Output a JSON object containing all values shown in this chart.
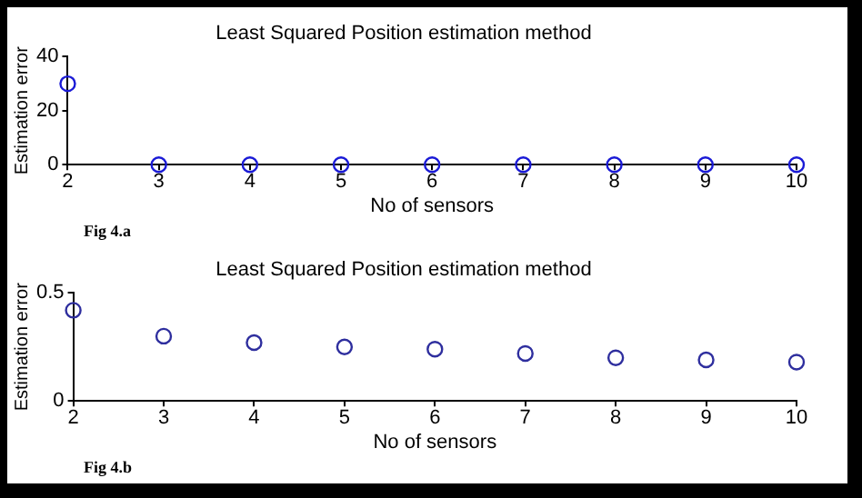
{
  "chart_data": [
    {
      "type": "scatter",
      "title": "Least Squared Position estimation method",
      "xlabel": "No of sensors",
      "ylabel": "Estimation error",
      "annotations": [
        "Fig 4.a"
      ],
      "x": [
        2,
        3,
        4,
        5,
        6,
        7,
        8,
        9,
        10
      ],
      "series": [
        {
          "color": "#1a1ad6",
          "values": [
            30,
            0,
            0,
            0,
            0,
            0,
            0,
            0,
            0
          ]
        }
      ],
      "xlim": [
        2,
        10
      ],
      "xticks": [
        2,
        3,
        4,
        5,
        6,
        7,
        8,
        9,
        10
      ],
      "ylim": [
        0,
        40
      ],
      "yticks": [
        0,
        20,
        40
      ],
      "grid": false,
      "legend": false,
      "marker": "circle"
    },
    {
      "type": "scatter",
      "title": "Least Squared Position estimation method",
      "xlabel": "No of sensors",
      "ylabel": "Estimation error",
      "annotations": [
        "Fig 4.b"
      ],
      "x": [
        2,
        3,
        4,
        5,
        6,
        7,
        8,
        9,
        10
      ],
      "series": [
        {
          "color": "#2e2e9e",
          "values": [
            0.42,
            0.3,
            0.27,
            0.25,
            0.24,
            0.22,
            0.2,
            0.19,
            0.18
          ]
        }
      ],
      "xlim": [
        2,
        10
      ],
      "xticks": [
        2,
        3,
        4,
        5,
        6,
        7,
        8,
        9,
        10
      ],
      "ylim": [
        0,
        0.5
      ],
      "yticks": [
        0,
        0.5
      ],
      "grid": false,
      "legend": false,
      "marker": "circle"
    }
  ]
}
